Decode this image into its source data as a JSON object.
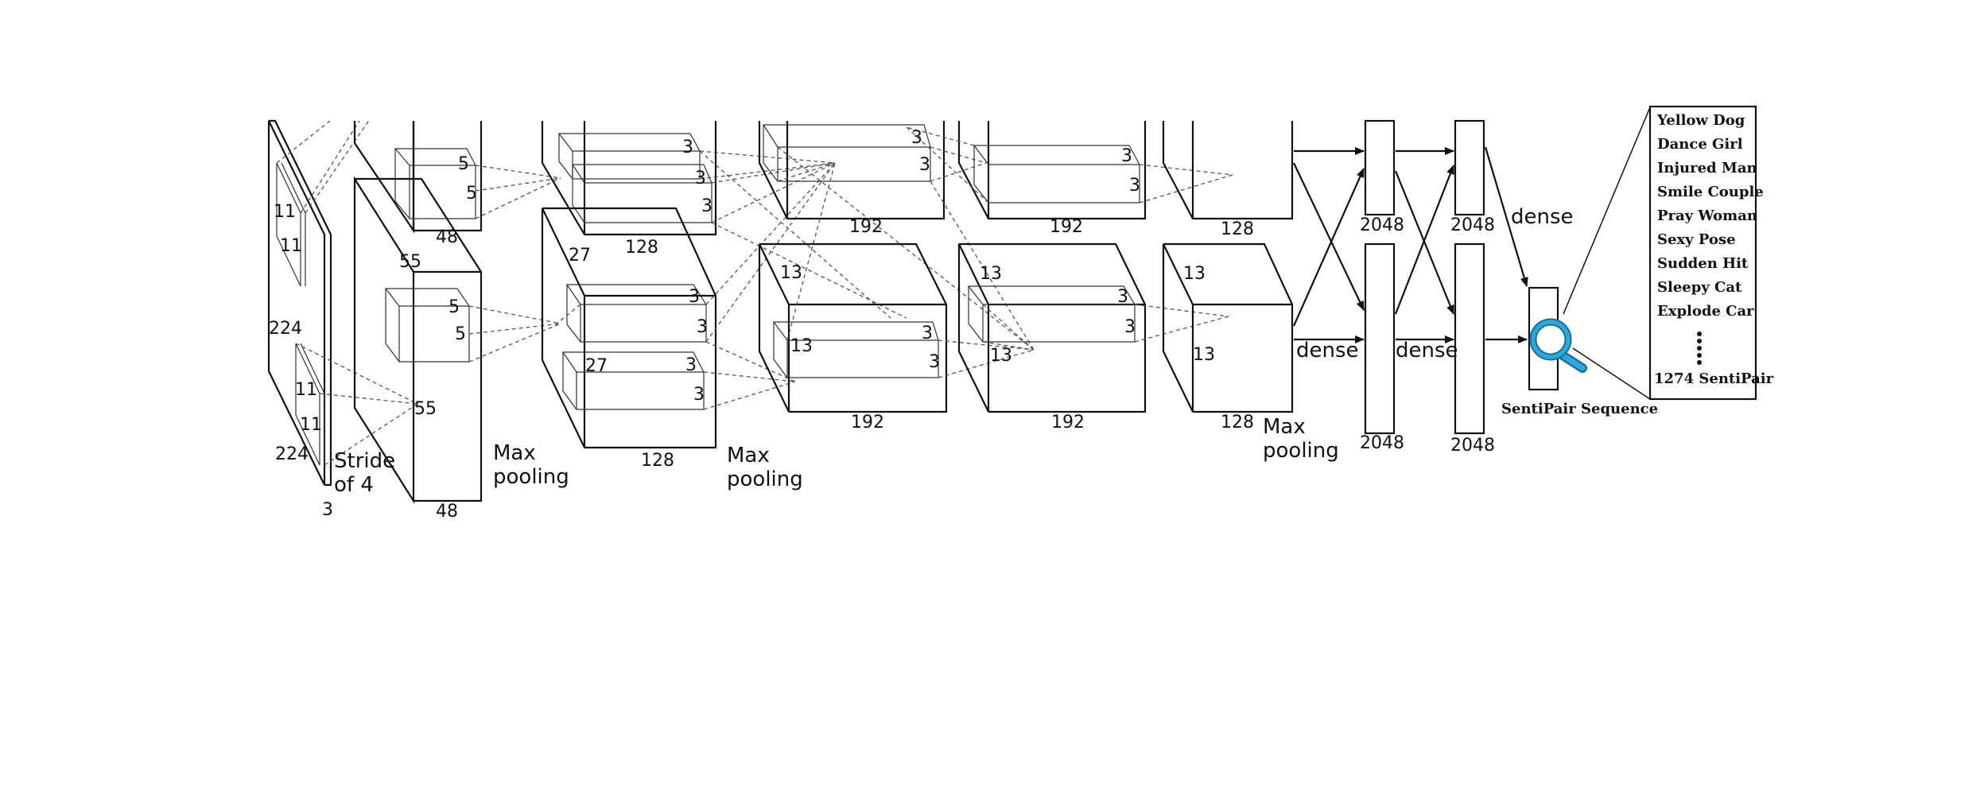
{
  "labels": {
    "in_side": "224",
    "in_bottom": "224",
    "in_depth": "3",
    "in_k1a": "11",
    "in_k1b": "11",
    "in_k2a": "11",
    "in_k2b": "11",
    "stride_line1": "Stride",
    "stride_line2": "of 4",
    "c1_top_k1": "5",
    "c1_top_k2": "5",
    "c1_top_depth": "48",
    "c1_side": "55",
    "c1_bot_k1": "5",
    "c1_bot_k2": "5",
    "c1_mid": "55",
    "c1_bot_depth": "48",
    "mp1_line1": "Max",
    "mp1_line2": "pooling",
    "c2_top_k1": "3",
    "c2_top_k2": "3",
    "c2_top_k3": "3",
    "c2_top_depth": "128",
    "c2_side": "27",
    "c2_bot_k1": "3",
    "c2_bot_k2": "3",
    "c2_bot_side": "27",
    "c2_bot_k3": "3",
    "c2_bot_k4": "3",
    "c2_bot_depth": "128",
    "mp2_line1": "Max",
    "mp2_line2": "pooling",
    "c3_top_k1": "3",
    "c3_top_k2": "3",
    "c3_top_depth": "192",
    "c3_side": "13",
    "c3_bot_side": "13",
    "c3_bot_k1": "3",
    "c3_bot_k2": "3",
    "c3_bot_depth": "192",
    "c4_top_k1": "3",
    "c4_top_k2": "3",
    "c4_top_depth": "192",
    "c4_side": "13",
    "c4_bot_k1": "3",
    "c4_bot_k2": "3",
    "c4_bot_side": "13",
    "c4_bot_depth": "192",
    "c5_top_depth": "128",
    "c5_side": "13",
    "c5_bot_side": "13",
    "c5_bot_depth": "128",
    "mp3_line1": "Max",
    "mp3_line2": "pooling",
    "fc1_top": "2048",
    "fc1_bot": "2048",
    "fc2_top": "2048",
    "fc2_bot": "2048",
    "dense1": "dense",
    "dense2": "dense",
    "dense3": "dense",
    "sequence_caption": "SentiPair Sequence"
  },
  "sentipairs": {
    "items": [
      "Yellow Dog",
      "Dance Girl",
      "Injured Man",
      "Smile Couple",
      "Pray Woman",
      "Sexy Pose",
      "Sudden Hit",
      "Sleepy Cat",
      "Explode Car"
    ],
    "total": "1274 SentiPair"
  },
  "colors": {
    "stroke": "#111111",
    "magnifier": "#29a9e0",
    "magnifier_dark": "#1b6f94"
  },
  "icons": {
    "magnifier": "magnifying-glass-icon"
  }
}
